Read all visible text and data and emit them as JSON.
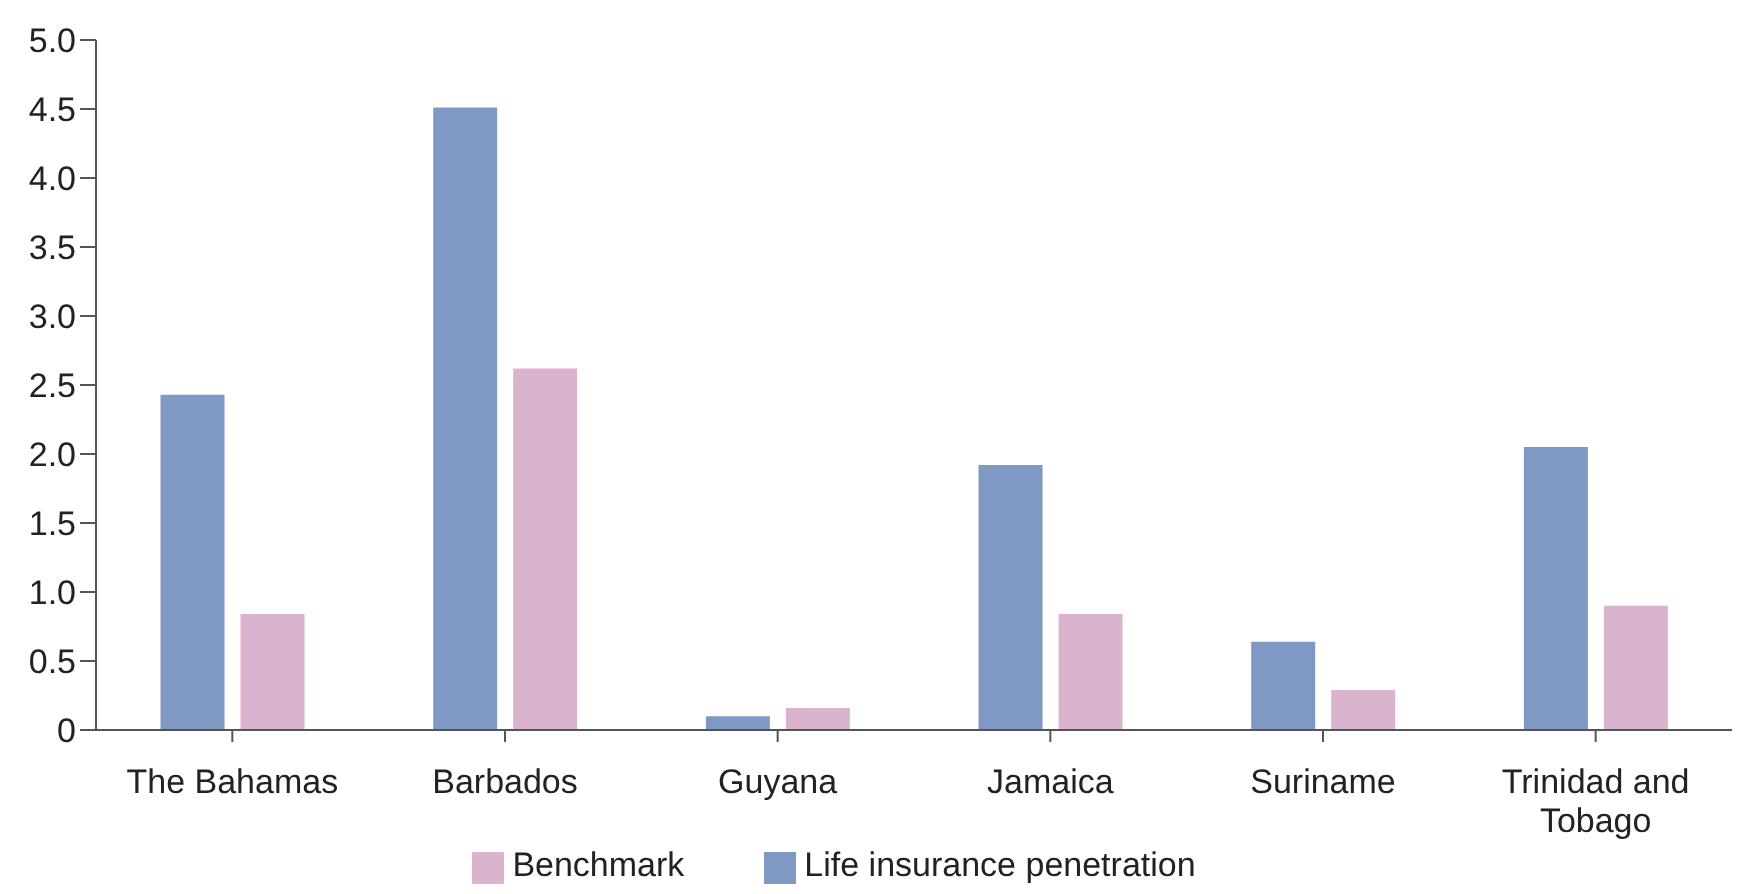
{
  "chart_data": {
    "type": "bar",
    "categories": [
      "The Bahamas",
      "Barbados",
      "Guyana",
      "Jamaica",
      "Suriname",
      "Trinidad and Tobago"
    ],
    "series": [
      {
        "name": "Life insurance penetration",
        "color": "#7f98c4",
        "values": [
          2.43,
          4.51,
          0.1,
          1.92,
          0.64,
          2.05
        ]
      },
      {
        "name": "Benchmark",
        "color": "#dab4cf",
        "values": [
          0.84,
          2.62,
          0.16,
          0.84,
          0.29,
          0.9
        ]
      }
    ],
    "ylim": [
      0,
      5
    ],
    "yticks": [
      0,
      0.5,
      {
        "value": 1,
        "label": "1.0"
      },
      1.5,
      {
        "value": 2,
        "label": "2.0"
      },
      2.5,
      {
        "value": 3,
        "label": "3.0"
      },
      3.5,
      {
        "value": 4,
        "label": "4.0"
      },
      4.5,
      {
        "value": 5,
        "label": "5.0"
      }
    ],
    "grid": false,
    "legend": "bottom"
  }
}
